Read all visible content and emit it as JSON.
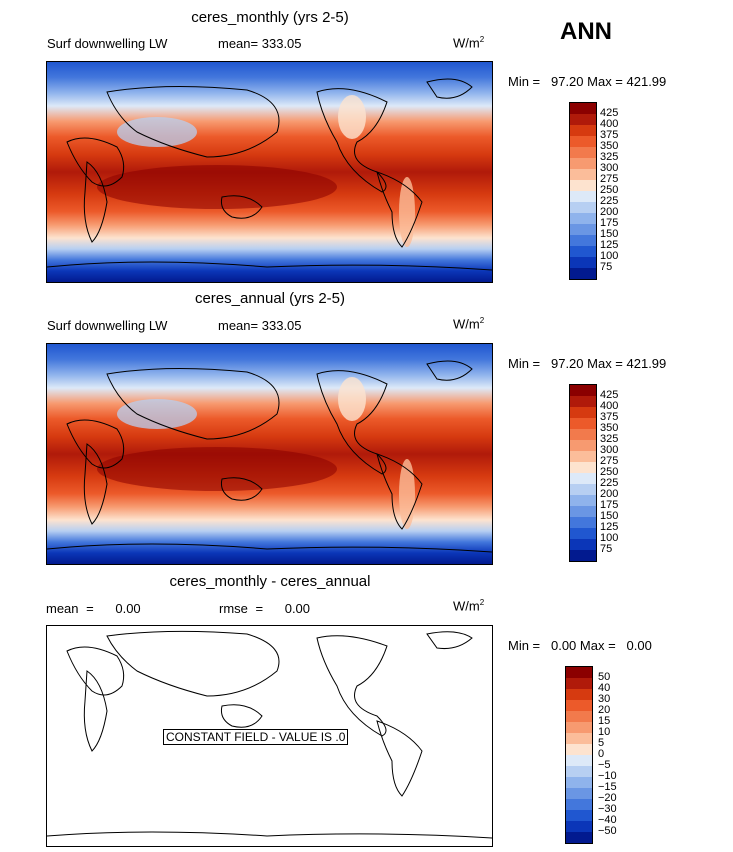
{
  "season": "ANN",
  "panels": [
    {
      "title": "ceres_monthly (yrs 2-5)",
      "variable": "Surf downwelling LW",
      "mean_label": "mean=",
      "mean_value": "333.05",
      "units_base": "W/m",
      "units_sup": "2",
      "minmax": "Min =   97.20 Max = 421.99"
    },
    {
      "title": "ceres_annual (yrs 2-5)",
      "variable": "Surf downwelling LW",
      "mean_label": "mean=",
      "mean_value": "333.05",
      "units_base": "W/m",
      "units_sup": "2",
      "minmax": "Min =   97.20 Max = 421.99"
    },
    {
      "title": "ceres_monthly - ceres_annual",
      "mean_label": "mean =",
      "mean_value": "0.00",
      "rmse_label": "rmse =",
      "rmse_value": "0.00",
      "units_base": "W/m",
      "units_sup": "2",
      "minmax": "Min =   0.00 Max =   0.00",
      "constant_field_note": "CONSTANT FIELD - VALUE IS .0"
    }
  ],
  "colorbar_abs": {
    "labels": [
      "425",
      "400",
      "375",
      "350",
      "325",
      "300",
      "275",
      "250",
      "225",
      "200",
      "175",
      "150",
      "125",
      "100",
      "75"
    ],
    "colors": [
      "#8b0000",
      "#b01a0a",
      "#d63a10",
      "#ec5a2a",
      "#f27a4c",
      "#f79a70",
      "#fbbd9a",
      "#fde3cf",
      "#dde9f8",
      "#b7cff2",
      "#8fb3ec",
      "#6a96e4",
      "#4377dc",
      "#2057d0",
      "#0b36b8",
      "#021a8f"
    ]
  },
  "colorbar_diff": {
    "labels": [
      "50",
      "40",
      "30",
      "20",
      "15",
      "10",
      "5",
      "0",
      "−5",
      "−10",
      "−15",
      "−20",
      "−30",
      "−40",
      "−50"
    ],
    "colors": [
      "#8b0000",
      "#b01a0a",
      "#d63a10",
      "#ec5a2a",
      "#f27a4c",
      "#f79a70",
      "#fbbd9a",
      "#fde3cf",
      "#dde9f8",
      "#b7cff2",
      "#8fb3ec",
      "#6a96e4",
      "#4377dc",
      "#2057d0",
      "#0b36b8",
      "#021a8f"
    ]
  }
}
